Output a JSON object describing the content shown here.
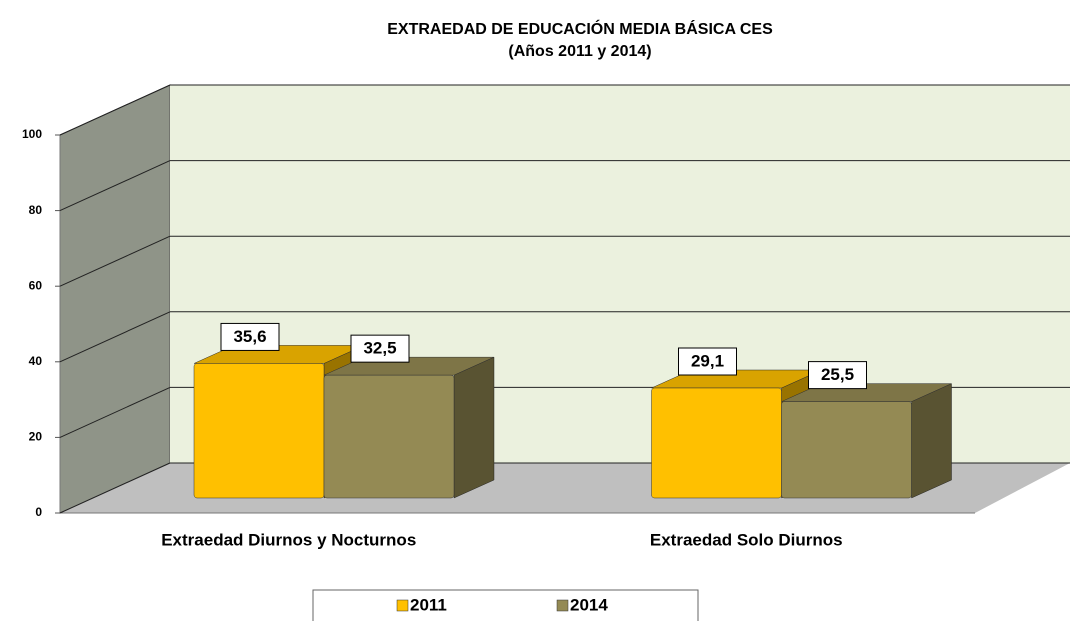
{
  "chart_data": {
    "type": "bar3d",
    "title": "EXTRAEDAD DE EDUCACIÓN MEDIA BÁSICA CES",
    "subtitle": "(Años 2011 y 2014)",
    "categories": [
      "Extraedad Diurnos y Nocturnos",
      "Extraedad Solo Diurnos"
    ],
    "series": [
      {
        "name": "2011",
        "color": "#ffc000",
        "values": [
          35.6,
          29.1
        ],
        "value_labels": [
          "35,6",
          "29,1"
        ]
      },
      {
        "name": "2014",
        "color": "#948a54",
        "values": [
          32.5,
          25.5
        ],
        "value_labels": [
          "32,5",
          "25,5"
        ]
      }
    ],
    "ylim": [
      0,
      100
    ],
    "yticks": [
      0,
      20,
      40,
      60,
      80,
      100
    ],
    "grid": true,
    "legend": "bottom"
  }
}
